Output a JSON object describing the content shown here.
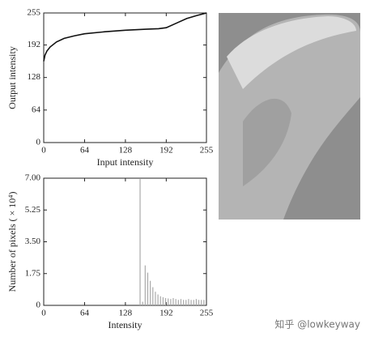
{
  "chart_data": [
    {
      "type": "line",
      "x_label": "Input intensity",
      "y_label": "Output intensity",
      "x": [
        0,
        2,
        5,
        10,
        20,
        32,
        48,
        64,
        96,
        128,
        160,
        180,
        192,
        208,
        224,
        240,
        255
      ],
      "values": [
        160,
        172,
        180,
        188,
        198,
        205,
        210,
        214,
        218,
        221,
        223,
        224,
        226,
        235,
        244,
        250,
        255
      ],
      "color": "#111111",
      "xlim": [
        0,
        255
      ],
      "xticks": [
        0,
        64,
        128,
        192,
        255
      ],
      "ylim": [
        0,
        255
      ],
      "yticks": [
        0,
        64,
        128,
        192,
        255
      ]
    },
    {
      "type": "bar",
      "x_label": "Intensity",
      "y_label": "Number of pixels ( × 10⁴)",
      "x": [
        151,
        155,
        159,
        163,
        167,
        171,
        175,
        179,
        183,
        187,
        191,
        195,
        199,
        203,
        207,
        211,
        215,
        219,
        223,
        227,
        231,
        235,
        239,
        243,
        247,
        251
      ],
      "values": [
        6.95,
        0.2,
        2.2,
        1.8,
        1.35,
        1.0,
        0.75,
        0.6,
        0.5,
        0.45,
        0.4,
        0.38,
        0.35,
        0.4,
        0.35,
        0.3,
        0.35,
        0.3,
        0.3,
        0.35,
        0.3,
        0.3,
        0.35,
        0.3,
        0.3,
        0.3
      ],
      "color": "#aaaaaa",
      "xlim": [
        0,
        255
      ],
      "xticks": [
        0,
        64,
        128,
        192,
        255
      ],
      "ylim": [
        0,
        7
      ],
      "yticks": [
        0,
        1.75,
        {
          "value": 3.5,
          "label": "3.50"
        },
        5.25,
        {
          "value": 7,
          "label": "7.00"
        }
      ]
    }
  ],
  "watermark": "知乎 @lowkeyway"
}
